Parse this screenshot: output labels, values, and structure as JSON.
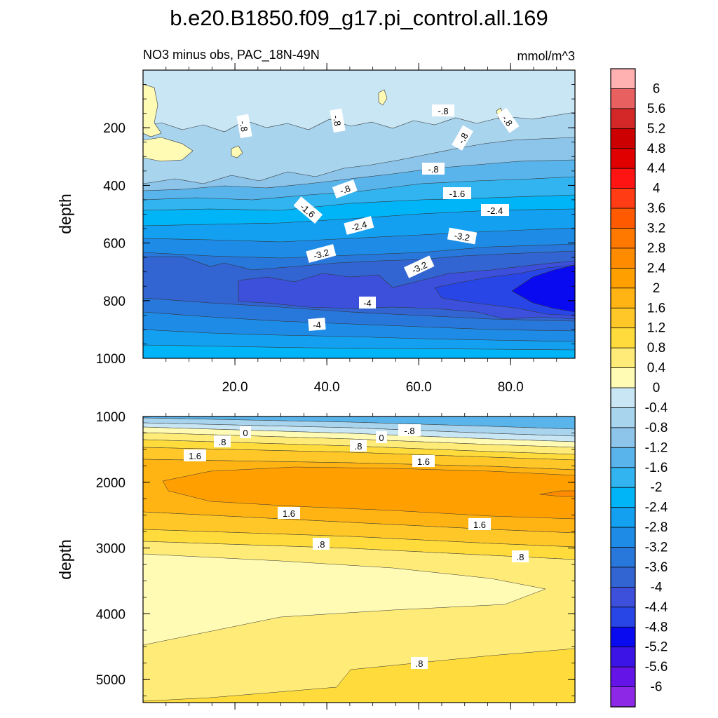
{
  "chart_data": {
    "type": "heatmap",
    "title": "b.e20.B1850.f09_g17.pi_control.all.169",
    "subtitle_left": "NO3 minus obs, PAC_18N-49N",
    "subtitle_right": "mmol/m^3",
    "top_panel": {
      "ylabel": "depth",
      "ylim": [
        0,
        1000
      ],
      "yticks": [
        "200",
        "400",
        "600",
        "800",
        "1000"
      ],
      "xlim": [
        0,
        94
      ],
      "xticks": [
        "20.0",
        "40.0",
        "60.0",
        "80.0"
      ],
      "contour_labels": [
        "-.8",
        "-.8",
        "-.8",
        "-.8",
        "-.8",
        "-.8",
        "-.8",
        "-1.6",
        "-1.6",
        "-2.4",
        "-2.4",
        "-3.2",
        "-3.2",
        "-3.2",
        "-4",
        "-4"
      ]
    },
    "bottom_panel": {
      "ylabel": "depth",
      "ylim": [
        1000,
        5350
      ],
      "yticks": [
        "1000",
        "2000",
        "3000",
        "4000",
        "5000"
      ],
      "contour_labels": [
        "0",
        ".8",
        "0",
        "-.8",
        ".8",
        "1.6",
        "1.6",
        "1.6",
        "1.6",
        ".8",
        ".8",
        ".8"
      ]
    },
    "colorbar": {
      "labels": [
        "6",
        "5.6",
        "5.2",
        "4.8",
        "4.4",
        "4",
        "3.6",
        "3.2",
        "2.8",
        "2.4",
        "2",
        "1.6",
        "1.2",
        "0.8",
        "0.4",
        "0",
        "-0.4",
        "-0.8",
        "-1.2",
        "-1.6",
        "-2",
        "-2.4",
        "-2.8",
        "-3.2",
        "-3.6",
        "-4",
        "-4.4",
        "-4.8",
        "-5.2",
        "-5.6",
        "-6"
      ],
      "colors": [
        "#ffb0b0",
        "#e86060",
        "#d42828",
        "#cc0000",
        "#e00000",
        "#ff1414",
        "#ff3c14",
        "#ff5a00",
        "#ff7800",
        "#ff8c00",
        "#ffa000",
        "#ffb414",
        "#ffc828",
        "#ffdc3c",
        "#ffec78",
        "#fffab4",
        "#c8e6f4",
        "#a8d4ee",
        "#8cc4ea",
        "#5ab4ec",
        "#32b4f0",
        "#00b4f8",
        "#14a0f0",
        "#1e8ce6",
        "#2878dc",
        "#3264d2",
        "#3c50dc",
        "#2846e6",
        "#0a0af0",
        "#3c14e6",
        "#6414e6",
        "#8c28e6"
      ]
    }
  }
}
